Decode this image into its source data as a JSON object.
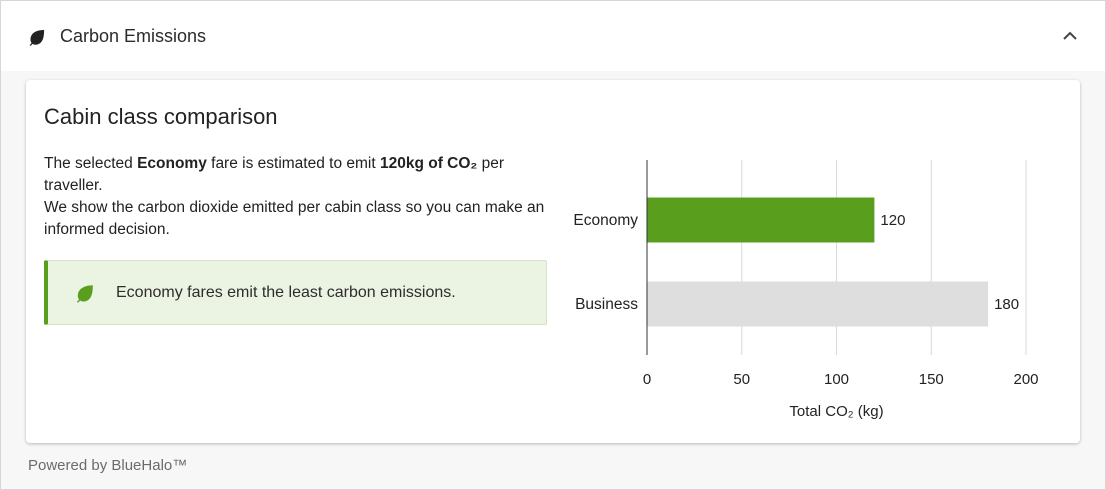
{
  "header": {
    "title": "Carbon Emissions",
    "icon": "leaf-icon",
    "toggle_icon": "chevron-up-icon"
  },
  "card": {
    "title": "Cabin class comparison",
    "description": {
      "part1": "The selected ",
      "fare": "Economy",
      "part2": " fare is estimated to emit ",
      "amount": "120kg of CO₂",
      "part3": " per traveller.",
      "line2": "We show the carbon dioxide emitted per cabin class so you can make an informed decision."
    },
    "banner": {
      "icon": "leaf-icon",
      "message": "Economy fares emit the least carbon emissions."
    }
  },
  "chart_data": {
    "type": "bar",
    "orientation": "horizontal",
    "categories": [
      "Economy",
      "Business"
    ],
    "values": [
      120,
      180
    ],
    "value_labels": [
      "120",
      "180"
    ],
    "colors": [
      "#5a9e1e",
      "#dedede"
    ],
    "xlabel": "Total CO₂ (kg)",
    "xlim": [
      0,
      200
    ],
    "xticks": [
      0,
      50,
      100,
      150,
      200
    ],
    "grid": true
  },
  "colors": {
    "accent": "#5a9e1e",
    "banner_bg": "#ebf3e2",
    "secondary_bar": "#dedede"
  },
  "footer": {
    "text": "Powered by BlueHalo™"
  }
}
